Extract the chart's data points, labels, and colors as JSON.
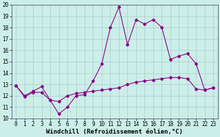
{
  "title": "",
  "xlabel": "Windchill (Refroidissement éolien,°C)",
  "ylabel": "",
  "background_color": "#cceee8",
  "grid_color": "#aacccc",
  "line_color": "#880088",
  "xlim": [
    -0.5,
    23.5
  ],
  "ylim": [
    10,
    20
  ],
  "yticks": [
    10,
    11,
    12,
    13,
    14,
    15,
    16,
    17,
    18,
    19,
    20
  ],
  "xticks": [
    0,
    1,
    2,
    3,
    4,
    5,
    6,
    7,
    8,
    9,
    10,
    11,
    12,
    13,
    14,
    15,
    16,
    17,
    18,
    19,
    20,
    21,
    22,
    23
  ],
  "series1_x": [
    0,
    1,
    2,
    3,
    4,
    5,
    6,
    7,
    8,
    9,
    10,
    11,
    12,
    13,
    14,
    15,
    16,
    17,
    18,
    19,
    20,
    21,
    22,
    23
  ],
  "series1_y": [
    12.9,
    11.9,
    12.3,
    12.3,
    11.6,
    10.4,
    11.0,
    12.0,
    12.1,
    13.3,
    14.8,
    18.0,
    19.8,
    16.5,
    18.7,
    18.3,
    18.7,
    18.0,
    15.2,
    15.5,
    15.7,
    14.8,
    12.5,
    12.7
  ],
  "series2_x": [
    0,
    1,
    2,
    3,
    4,
    5,
    6,
    7,
    8,
    9,
    10,
    11,
    12,
    13,
    14,
    15,
    16,
    17,
    18,
    19,
    20,
    21,
    22,
    23
  ],
  "series2_y": [
    12.9,
    12.0,
    12.4,
    12.8,
    11.6,
    11.5,
    12.0,
    12.2,
    12.3,
    12.4,
    12.5,
    12.6,
    12.7,
    13.0,
    13.2,
    13.3,
    13.4,
    13.5,
    13.6,
    13.6,
    13.5,
    12.6,
    12.5,
    12.7
  ],
  "marker": "D",
  "marker_size": 2.0,
  "line_width": 0.8,
  "xlabel_fontsize": 6.5,
  "tick_fontsize": 5.5
}
